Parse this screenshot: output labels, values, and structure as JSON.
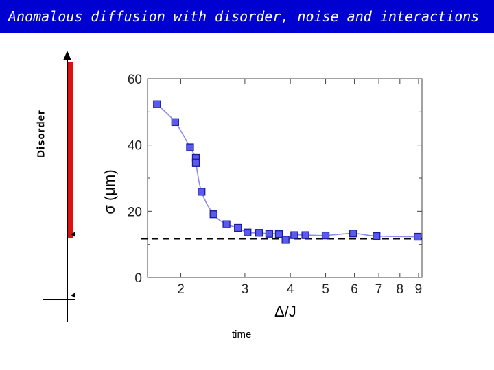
{
  "slide": {
    "title": "Anomalous diffusion with disorder, noise and interactions"
  },
  "side_axis": {
    "label": "Disorder",
    "bottom_label": "time",
    "bar_color": "#dd1111"
  },
  "colors": {
    "title_bar": "#0000d0",
    "marker_fill": "#5a5aee",
    "marker_edge": "#1a1aa0",
    "curve": "#8a8af0"
  },
  "chart_data": {
    "type": "scatter",
    "xlabel": "Δ/J",
    "ylabel": "σ (μm)",
    "xscale": "log",
    "xlim": [
      1.62,
      9.2
    ],
    "ylim": [
      0,
      60
    ],
    "xticks": [
      2,
      3,
      4,
      5,
      6,
      7,
      8,
      9
    ],
    "yticks": [
      0,
      20,
      40,
      60
    ],
    "grid": false,
    "x": [
      1.72,
      1.93,
      2.12,
      2.2,
      2.2,
      2.28,
      2.46,
      2.67,
      2.87,
      3.05,
      3.28,
      3.5,
      3.72,
      3.88,
      4.1,
      4.4,
      5.0,
      5.95,
      6.9,
      8.95
    ],
    "y": [
      52.3,
      46.9,
      39.3,
      36.1,
      34.7,
      25.9,
      19.1,
      16.1,
      15.0,
      13.6,
      13.5,
      13.2,
      13.1,
      11.4,
      12.8,
      12.8,
      12.7,
      13.3,
      12.5,
      12.3
    ],
    "reference_line": {
      "y": 11.7,
      "style": "dashed"
    }
  }
}
